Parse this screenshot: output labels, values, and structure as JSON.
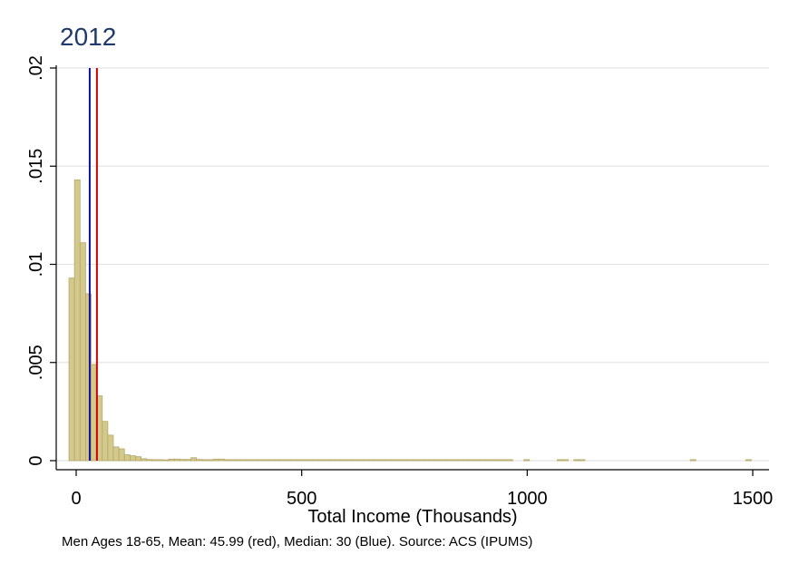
{
  "chart_data": {
    "type": "bar",
    "title": "2012",
    "subtitle": "",
    "xlabel": "Total Income (Thousands)",
    "ylabel": "",
    "note": "Men Ages 18-65, Mean: 45.99 (red), Median: 30 (Blue). Source: ACS (IPUMS)",
    "xlim": [
      -15,
      1500
    ],
    "ylim": [
      0,
      0.02
    ],
    "x_ticks": [
      0,
      500,
      1000,
      1500
    ],
    "x_tick_labels": [
      "0",
      "500",
      "1000",
      "1500"
    ],
    "y_ticks": [
      0,
      0.005,
      0.01,
      0.015,
      0.02
    ],
    "y_tick_labels": [
      "0",
      ".005",
      ".01",
      ".015",
      ".02"
    ],
    "grid": "horizontal",
    "bin_width": 12.3,
    "bin_start": -16,
    "density": [
      0.0093,
      0.0143,
      0.0111,
      0.0085,
      0.0049,
      0.0033,
      0.002,
      0.0013,
      0.0007,
      0.0006,
      0.0003,
      0.00025,
      0.0002,
      0.0001,
      6e-05,
      5e-05,
      5e-05,
      4e-05,
      8e-05,
      8e-05,
      6e-05,
      6e-05,
      0.00015,
      6e-05,
      5e-05,
      5e-05,
      8e-05,
      8e-05,
      5e-05,
      5e-05,
      5e-05,
      5e-05,
      5e-05,
      5e-05,
      5e-05,
      5e-05,
      5e-05,
      5e-05,
      5e-05,
      5e-05,
      5e-05,
      5e-05,
      5e-05,
      5e-05,
      5e-05,
      5e-05,
      5e-05,
      5e-05,
      5e-05,
      5e-05,
      5e-05,
      5e-05,
      5e-05,
      5e-05,
      5e-05,
      5e-05,
      5e-05,
      5e-05,
      5e-05,
      5e-05,
      5e-05,
      5e-05,
      5e-05,
      5e-05,
      5e-05,
      5e-05,
      5e-05,
      5e-05,
      5e-05,
      5e-05,
      5e-05,
      5e-05,
      5e-05,
      5e-05,
      5e-05,
      5e-05,
      5e-05,
      5e-05,
      5e-05,
      5e-05,
      0,
      0,
      5e-05,
      0,
      0,
      0,
      0,
      0,
      5e-05,
      5e-05,
      0,
      5e-05,
      5e-05,
      0,
      0,
      0,
      0,
      0,
      0,
      0,
      0,
      0,
      0,
      0,
      0,
      0,
      0,
      0,
      0,
      0,
      0,
      0,
      5e-05,
      0,
      0,
      0,
      0,
      0,
      0,
      0,
      0,
      0,
      5e-05,
      0,
      0,
      0,
      0,
      0,
      0,
      0,
      0,
      0,
      0,
      0,
      0,
      0,
      0,
      0,
      0,
      0
    ],
    "reference_lines": [
      {
        "value": 30,
        "color": "#1010a0"
      },
      {
        "value": 45.99,
        "color": "#d00000"
      }
    ],
    "colors": {
      "bar_fill": "#d3c98c",
      "bar_stroke": "#b3a867",
      "grid": "#e4e4e4",
      "title": "#1f3a6b"
    }
  }
}
